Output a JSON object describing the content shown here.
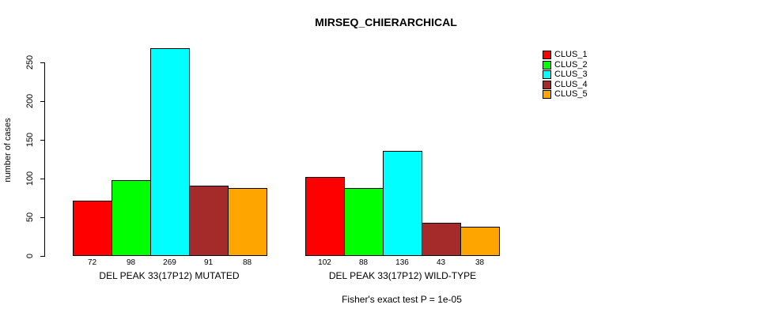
{
  "chart_data": {
    "type": "bar",
    "title": "MIRSEQ_CHIERARCHICAL",
    "ylabel": "number of cases",
    "xlabel": "",
    "ylim": [
      0,
      250
    ],
    "yticks": [
      0,
      50,
      100,
      150,
      200,
      250
    ],
    "grid": false,
    "legend_position": "top-right",
    "categories": [
      "DEL PEAK 33(17P12) MUTATED",
      "DEL PEAK 33(17P12) WILD-TYPE"
    ],
    "series": [
      {
        "name": "CLUS_1",
        "color": "#FF0000",
        "values": [
          72,
          102
        ]
      },
      {
        "name": "CLUS_2",
        "color": "#00FF00",
        "values": [
          98,
          88
        ]
      },
      {
        "name": "CLUS_3",
        "color": "#00FFFF",
        "values": [
          269,
          136
        ]
      },
      {
        "name": "CLUS_4",
        "color": "#A52A2A",
        "values": [
          91,
          43
        ]
      },
      {
        "name": "CLUS_5",
        "color": "#FFA500",
        "values": [
          88,
          38
        ]
      }
    ],
    "annotation": "Fisher's exact test P = 1e-05"
  }
}
